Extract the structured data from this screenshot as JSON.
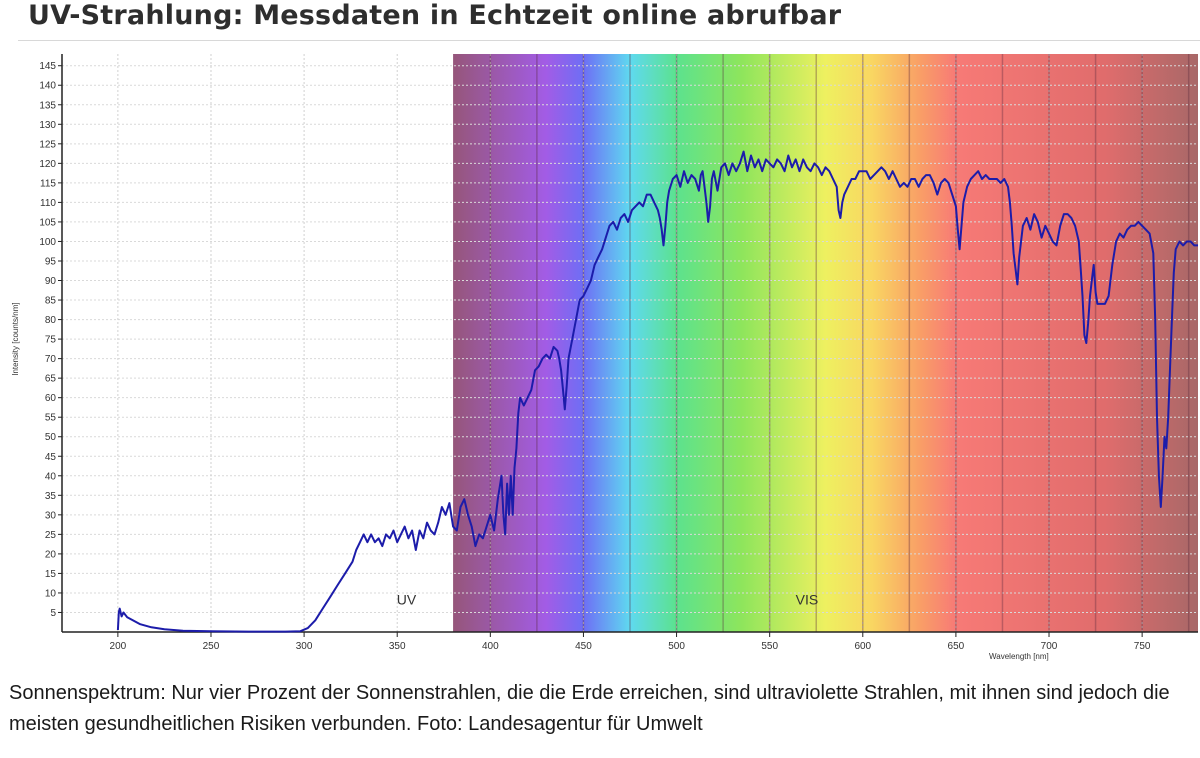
{
  "headline": "UV-Strahlung: Messdaten in Echtzeit online abrufbar",
  "caption": "Sonnenspektrum: Nur vier Prozent der Sonnenstrahlen, die die Erde erreichen, sind ultraviolette Strahlen, mit ihnen sind jedoch die meisten gesundheitlichen Risiken verbunden. Foto: Landesagentur für Umwelt",
  "chart_data": {
    "type": "line",
    "xlabel": "Wavelength [nm]",
    "ylabel": "Intensity [counts/nm]",
    "xlim": [
      170,
      780
    ],
    "ylim": [
      0,
      148
    ],
    "x_ticks": [
      200,
      250,
      300,
      350,
      400,
      450,
      500,
      550,
      600,
      650,
      700,
      750
    ],
    "y_ticks": [
      5,
      10,
      15,
      20,
      25,
      30,
      35,
      40,
      45,
      50,
      55,
      60,
      65,
      70,
      75,
      80,
      85,
      90,
      95,
      100,
      105,
      110,
      115,
      120,
      125,
      130,
      135,
      140,
      145
    ],
    "grid": true,
    "line_color": "#1c1caa",
    "region_labels": [
      {
        "text": "UV",
        "x": 355,
        "y": 7
      },
      {
        "text": "VIS",
        "x": 570,
        "y": 7
      }
    ],
    "spectrum_band": [
      {
        "x": 380,
        "color": "#96567a"
      },
      {
        "x": 430,
        "color": "#a25ce6"
      },
      {
        "x": 450,
        "color": "#6e6ef5"
      },
      {
        "x": 475,
        "color": "#5fd9f0"
      },
      {
        "x": 500,
        "color": "#5ce28e"
      },
      {
        "x": 535,
        "color": "#8ee55c"
      },
      {
        "x": 580,
        "color": "#eef060"
      },
      {
        "x": 605,
        "color": "#f9d662"
      },
      {
        "x": 630,
        "color": "#f9a066"
      },
      {
        "x": 650,
        "color": "#f77a76"
      },
      {
        "x": 730,
        "color": "#e06c6c"
      },
      {
        "x": 780,
        "color": "#a86868"
      }
    ],
    "series": [
      {
        "points": [
          [
            200,
            0.5
          ],
          [
            200.5,
            5
          ],
          [
            201,
            6
          ],
          [
            202,
            4
          ],
          [
            203,
            5
          ],
          [
            205,
            3.8
          ],
          [
            208,
            3
          ],
          [
            212,
            2
          ],
          [
            218,
            1.2
          ],
          [
            225,
            0.7
          ],
          [
            235,
            0.3
          ],
          [
            250,
            0.2
          ],
          [
            270,
            0.1
          ],
          [
            290,
            0.1
          ],
          [
            298,
            0.2
          ],
          [
            302,
            1
          ],
          [
            306,
            3
          ],
          [
            310,
            6
          ],
          [
            314,
            9
          ],
          [
            318,
            12
          ],
          [
            322,
            15
          ],
          [
            326,
            18
          ],
          [
            328,
            21
          ],
          [
            330,
            23
          ],
          [
            332,
            25
          ],
          [
            334,
            23
          ],
          [
            336,
            25
          ],
          [
            338,
            23
          ],
          [
            340,
            24
          ],
          [
            342,
            22
          ],
          [
            344,
            25
          ],
          [
            346,
            24
          ],
          [
            348,
            26
          ],
          [
            350,
            23
          ],
          [
            352,
            25
          ],
          [
            354,
            27
          ],
          [
            356,
            24
          ],
          [
            358,
            26
          ],
          [
            360,
            21
          ],
          [
            362,
            26
          ],
          [
            364,
            24
          ],
          [
            366,
            28
          ],
          [
            368,
            26
          ],
          [
            370,
            25
          ],
          [
            372,
            28
          ],
          [
            374,
            32
          ],
          [
            376,
            30
          ],
          [
            378,
            33
          ],
          [
            380,
            27
          ],
          [
            382,
            26
          ],
          [
            384,
            32
          ],
          [
            386,
            34
          ],
          [
            388,
            30
          ],
          [
            390,
            27
          ],
          [
            392,
            22
          ],
          [
            394,
            25
          ],
          [
            396,
            24
          ],
          [
            398,
            27
          ],
          [
            400,
            30
          ],
          [
            402,
            26
          ],
          [
            404,
            34
          ],
          [
            406,
            40
          ],
          [
            407,
            30
          ],
          [
            408,
            25
          ],
          [
            409,
            38
          ],
          [
            410,
            30
          ],
          [
            411,
            40
          ],
          [
            412,
            30
          ],
          [
            413,
            42
          ],
          [
            414,
            47
          ],
          [
            415,
            56
          ],
          [
            416,
            60
          ],
          [
            418,
            58
          ],
          [
            420,
            60
          ],
          [
            422,
            62
          ],
          [
            424,
            67
          ],
          [
            426,
            68
          ],
          [
            428,
            70
          ],
          [
            430,
            71
          ],
          [
            432,
            70
          ],
          [
            434,
            73
          ],
          [
            436,
            72
          ],
          [
            437,
            70
          ],
          [
            438,
            67
          ],
          [
            439,
            62
          ],
          [
            440,
            57
          ],
          [
            441,
            63
          ],
          [
            442,
            70
          ],
          [
            444,
            75
          ],
          [
            446,
            80
          ],
          [
            448,
            85
          ],
          [
            450,
            86
          ],
          [
            452,
            88
          ],
          [
            454,
            90
          ],
          [
            456,
            94
          ],
          [
            458,
            96
          ],
          [
            460,
            98
          ],
          [
            462,
            101
          ],
          [
            464,
            104
          ],
          [
            466,
            105
          ],
          [
            468,
            103
          ],
          [
            470,
            106
          ],
          [
            472,
            107
          ],
          [
            474,
            105
          ],
          [
            476,
            108
          ],
          [
            478,
            109
          ],
          [
            480,
            110
          ],
          [
            482,
            109
          ],
          [
            484,
            112
          ],
          [
            486,
            112
          ],
          [
            488,
            110
          ],
          [
            490,
            108
          ],
          [
            491,
            106
          ],
          [
            492,
            103
          ],
          [
            493,
            99
          ],
          [
            494,
            104
          ],
          [
            495,
            110
          ],
          [
            496,
            113
          ],
          [
            498,
            116
          ],
          [
            500,
            117
          ],
          [
            502,
            114
          ],
          [
            504,
            118
          ],
          [
            506,
            115
          ],
          [
            508,
            117
          ],
          [
            510,
            116
          ],
          [
            512,
            113
          ],
          [
            513,
            117
          ],
          [
            514,
            118
          ],
          [
            515,
            114
          ],
          [
            516,
            110
          ],
          [
            517,
            105
          ],
          [
            518,
            109
          ],
          [
            519,
            116
          ],
          [
            520,
            118
          ],
          [
            522,
            113
          ],
          [
            524,
            119
          ],
          [
            526,
            120
          ],
          [
            528,
            117
          ],
          [
            530,
            120
          ],
          [
            532,
            118
          ],
          [
            534,
            120
          ],
          [
            536,
            123
          ],
          [
            538,
            118
          ],
          [
            540,
            122
          ],
          [
            542,
            119
          ],
          [
            544,
            121
          ],
          [
            546,
            118
          ],
          [
            548,
            121
          ],
          [
            550,
            120
          ],
          [
            552,
            119
          ],
          [
            554,
            121
          ],
          [
            556,
            120
          ],
          [
            558,
            118
          ],
          [
            560,
            122
          ],
          [
            562,
            119
          ],
          [
            564,
            121
          ],
          [
            566,
            118
          ],
          [
            568,
            121
          ],
          [
            570,
            119
          ],
          [
            572,
            118
          ],
          [
            574,
            120
          ],
          [
            576,
            119
          ],
          [
            578,
            117
          ],
          [
            580,
            119
          ],
          [
            582,
            118
          ],
          [
            584,
            116
          ],
          [
            586,
            114
          ],
          [
            587,
            108
          ],
          [
            588,
            106
          ],
          [
            589,
            110
          ],
          [
            590,
            112
          ],
          [
            592,
            114
          ],
          [
            594,
            116
          ],
          [
            596,
            116
          ],
          [
            598,
            118
          ],
          [
            600,
            118
          ],
          [
            602,
            118
          ],
          [
            604,
            116
          ],
          [
            606,
            117
          ],
          [
            608,
            118
          ],
          [
            610,
            119
          ],
          [
            612,
            118
          ],
          [
            614,
            116
          ],
          [
            616,
            118
          ],
          [
            618,
            116
          ],
          [
            620,
            114
          ],
          [
            622,
            115
          ],
          [
            624,
            114
          ],
          [
            626,
            116
          ],
          [
            628,
            116
          ],
          [
            630,
            114
          ],
          [
            632,
            116
          ],
          [
            634,
            117
          ],
          [
            636,
            117
          ],
          [
            638,
            115
          ],
          [
            640,
            112
          ],
          [
            642,
            115
          ],
          [
            644,
            116
          ],
          [
            646,
            115
          ],
          [
            648,
            112
          ],
          [
            650,
            109
          ],
          [
            651,
            103
          ],
          [
            652,
            98
          ],
          [
            653,
            104
          ],
          [
            654,
            110
          ],
          [
            656,
            114
          ],
          [
            658,
            116
          ],
          [
            660,
            117
          ],
          [
            662,
            118
          ],
          [
            664,
            116
          ],
          [
            666,
            117
          ],
          [
            668,
            116
          ],
          [
            670,
            116
          ],
          [
            672,
            116
          ],
          [
            674,
            115
          ],
          [
            676,
            116
          ],
          [
            678,
            114
          ],
          [
            679,
            110
          ],
          [
            680,
            104
          ],
          [
            681,
            97
          ],
          [
            682,
            93
          ],
          [
            683,
            89
          ],
          [
            684,
            96
          ],
          [
            686,
            104
          ],
          [
            688,
            106
          ],
          [
            690,
            103
          ],
          [
            692,
            107
          ],
          [
            694,
            105
          ],
          [
            696,
            101
          ],
          [
            698,
            104
          ],
          [
            700,
            102
          ],
          [
            702,
            100
          ],
          [
            704,
            99
          ],
          [
            706,
            104
          ],
          [
            708,
            107
          ],
          [
            710,
            107
          ],
          [
            712,
            106
          ],
          [
            714,
            104
          ],
          [
            716,
            100
          ],
          [
            717,
            93
          ],
          [
            718,
            86
          ],
          [
            719,
            76
          ],
          [
            720,
            74
          ],
          [
            721,
            79
          ],
          [
            722,
            86
          ],
          [
            723,
            90
          ],
          [
            724,
            94
          ],
          [
            725,
            87
          ],
          [
            726,
            84
          ],
          [
            728,
            84
          ],
          [
            730,
            84
          ],
          [
            732,
            86
          ],
          [
            734,
            94
          ],
          [
            736,
            100
          ],
          [
            738,
            102
          ],
          [
            740,
            101
          ],
          [
            742,
            103
          ],
          [
            744,
            104
          ],
          [
            746,
            104
          ],
          [
            748,
            105
          ],
          [
            750,
            104
          ],
          [
            752,
            103
          ],
          [
            754,
            102
          ],
          [
            756,
            97
          ],
          [
            757,
            80
          ],
          [
            758,
            55
          ],
          [
            759,
            40
          ],
          [
            760,
            32
          ],
          [
            761,
            40
          ],
          [
            762,
            50
          ],
          [
            763,
            47
          ],
          [
            764,
            55
          ],
          [
            765,
            68
          ],
          [
            766,
            80
          ],
          [
            767,
            92
          ],
          [
            768,
            98
          ],
          [
            770,
            100
          ],
          [
            772,
            99
          ],
          [
            774,
            100
          ],
          [
            776,
            100
          ],
          [
            778,
            99
          ],
          [
            780,
            99
          ]
        ]
      }
    ]
  }
}
